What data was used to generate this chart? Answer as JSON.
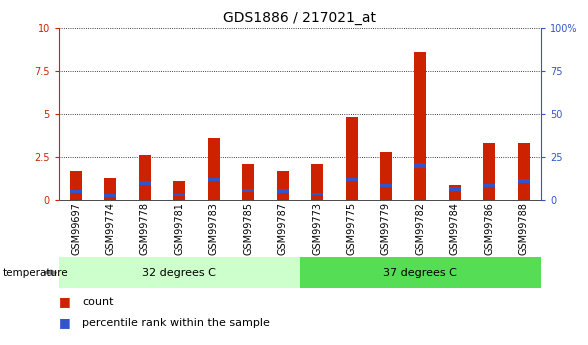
{
  "title": "GDS1886 / 217021_at",
  "samples": [
    "GSM99697",
    "GSM99774",
    "GSM99778",
    "GSM99781",
    "GSM99783",
    "GSM99785",
    "GSM99787",
    "GSM99773",
    "GSM99775",
    "GSM99779",
    "GSM99782",
    "GSM99784",
    "GSM99786",
    "GSM99788"
  ],
  "count_values": [
    1.7,
    1.3,
    2.6,
    1.1,
    3.6,
    2.1,
    1.7,
    2.1,
    4.8,
    2.8,
    8.6,
    0.9,
    3.3,
    3.3
  ],
  "percentile_values": [
    0.5,
    0.25,
    1.0,
    0.3,
    1.2,
    0.55,
    0.55,
    0.35,
    1.2,
    0.85,
    2.0,
    0.65,
    0.85,
    1.1
  ],
  "percentile_heights": [
    0.18,
    0.15,
    0.22,
    0.15,
    0.22,
    0.18,
    0.22,
    0.15,
    0.22,
    0.22,
    0.3,
    0.22,
    0.18,
    0.22
  ],
  "group1_label": "32 degrees C",
  "group2_label": "37 degrees C",
  "group1_count": 7,
  "group2_count": 7,
  "temperature_label": "temperature",
  "ylim_left": [
    0,
    10
  ],
  "ylim_right": [
    0,
    100
  ],
  "yticks_left": [
    0,
    2.5,
    5.0,
    7.5,
    10.0
  ],
  "yticks_right": [
    0,
    25,
    50,
    75,
    100
  ],
  "bar_color_count": "#cc2200",
  "bar_color_percentile": "#3355cc",
  "bar_width": 0.35,
  "bar_bg_color": "#cccccc",
  "group1_bg": "#ccffcc",
  "group2_bg": "#55dd55",
  "title_fontsize": 10,
  "tick_fontsize": 7,
  "legend_fontsize": 8,
  "left_color": "#cc2200",
  "right_color": "#3355cc"
}
